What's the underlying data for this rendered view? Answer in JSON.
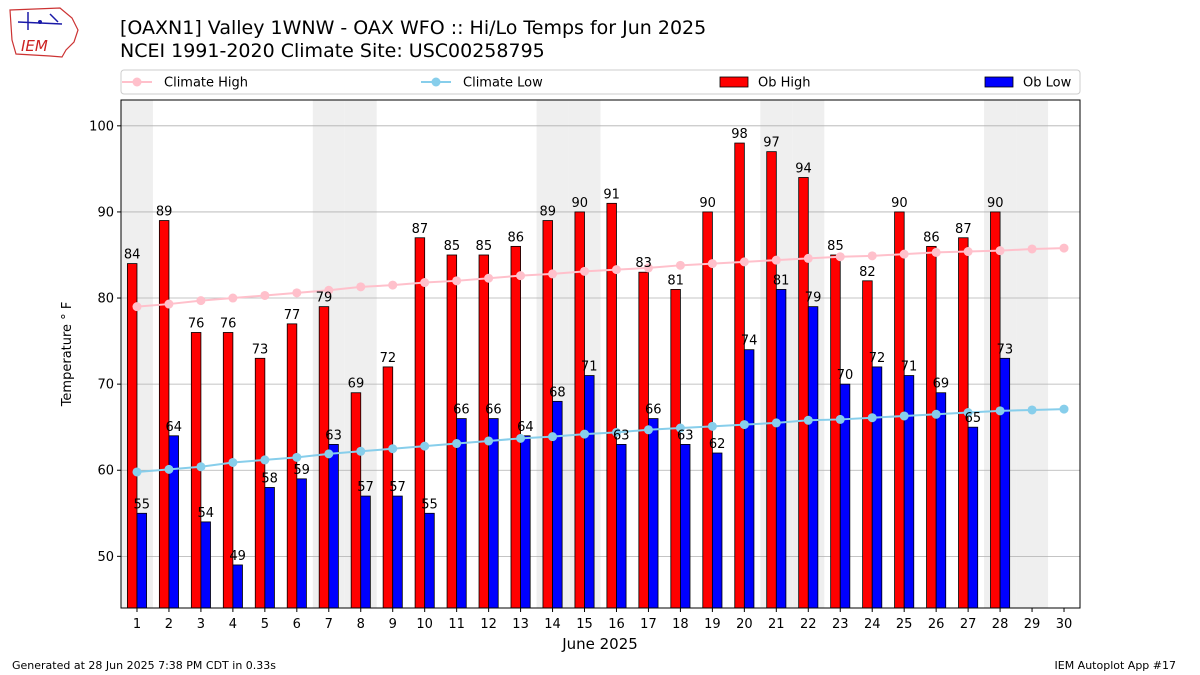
{
  "header": {
    "title": "[OAXN1] Valley 1WNW - OAX WFO :: Hi/Lo Temps for Jun 2025",
    "subtitle": "NCEI 1991-2020 Climate Site: USC00258795"
  },
  "logo": {
    "text": "IEM"
  },
  "footer": {
    "generated": "Generated at 28 Jun 2025 7:38 PM CDT in 0.33s",
    "app": "IEM Autoplot App #17"
  },
  "chart_data": {
    "type": "bar",
    "xlabel": "June 2025",
    "ylabel": "Temperature ° F",
    "ylim": [
      44,
      103
    ],
    "xlim": [
      0.5,
      30.5
    ],
    "yticks": [
      50,
      60,
      70,
      80,
      90,
      100
    ],
    "grid": "y",
    "legend_position": "top",
    "weekend_days": [
      1,
      7,
      8,
      14,
      15,
      21,
      22,
      28,
      29
    ],
    "x": [
      1,
      2,
      3,
      4,
      5,
      6,
      7,
      8,
      9,
      10,
      11,
      12,
      13,
      14,
      15,
      16,
      17,
      18,
      19,
      20,
      21,
      22,
      23,
      24,
      25,
      26,
      27,
      28,
      29,
      30
    ],
    "series": [
      {
        "name": "Climate High",
        "kind": "line",
        "color": "#ffc0cb",
        "values": [
          79.0,
          79.3,
          79.7,
          80.0,
          80.3,
          80.6,
          80.9,
          81.3,
          81.5,
          81.8,
          82.0,
          82.3,
          82.6,
          82.8,
          83.1,
          83.3,
          83.5,
          83.8,
          84.0,
          84.2,
          84.4,
          84.6,
          84.8,
          84.9,
          85.1,
          85.3,
          85.4,
          85.5,
          85.7,
          85.8
        ]
      },
      {
        "name": "Climate Low",
        "kind": "line",
        "color": "#87ceeb",
        "values": [
          59.8,
          60.1,
          60.4,
          60.9,
          61.2,
          61.5,
          61.9,
          62.2,
          62.5,
          62.8,
          63.1,
          63.4,
          63.7,
          63.9,
          64.2,
          64.4,
          64.7,
          64.9,
          65.1,
          65.3,
          65.5,
          65.8,
          65.9,
          66.1,
          66.3,
          66.5,
          66.7,
          66.9,
          67.0,
          67.1
        ]
      },
      {
        "name": "Ob High",
        "kind": "bar",
        "color": "#ff0000",
        "values": [
          84,
          89,
          76,
          76,
          73,
          77,
          79,
          69,
          72,
          87,
          85,
          85,
          86,
          89,
          90,
          91,
          83,
          81,
          90,
          98,
          97,
          94,
          85,
          82,
          90,
          86,
          87,
          90,
          null,
          null
        ]
      },
      {
        "name": "Ob Low",
        "kind": "bar",
        "color": "#0000ff",
        "values": [
          55,
          64,
          54,
          49,
          58,
          59,
          63,
          57,
          57,
          55,
          66,
          66,
          64,
          68,
          71,
          63,
          66,
          63,
          62,
          74,
          81,
          79,
          70,
          72,
          71,
          69,
          65,
          73,
          null,
          null
        ]
      }
    ]
  }
}
